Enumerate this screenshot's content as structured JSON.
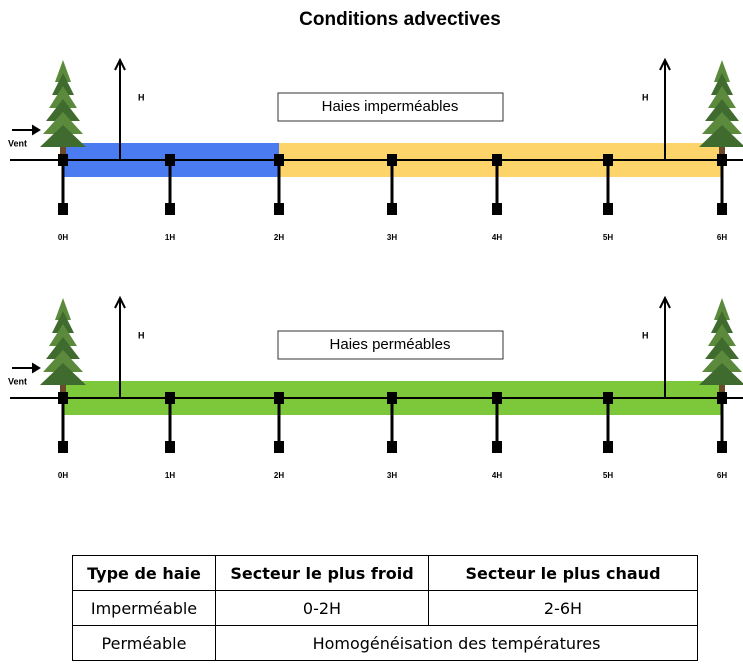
{
  "title": "Conditions advectives",
  "panels": [
    {
      "label": "Haies imperméables",
      "wind": "Vent",
      "height_labels": [
        "H",
        "H"
      ],
      "positions": [
        "0H",
        "1H",
        "2H",
        "3H",
        "4H",
        "5H",
        "6H"
      ]
    },
    {
      "label": "Haies perméables",
      "wind": "Vent",
      "height_labels": [
        "H",
        "H"
      ],
      "positions": [
        "0H",
        "1H",
        "2H",
        "3H",
        "4H",
        "5H",
        "6H"
      ]
    }
  ],
  "table": {
    "header": [
      "Type de haie",
      "Secteur le plus froid",
      "Secteur le plus chaud"
    ],
    "rows": [
      [
        "Imperméable",
        "0-2H",
        "2-6H"
      ],
      [
        "Perméable",
        "Homogénéisation des températures"
      ]
    ]
  }
}
